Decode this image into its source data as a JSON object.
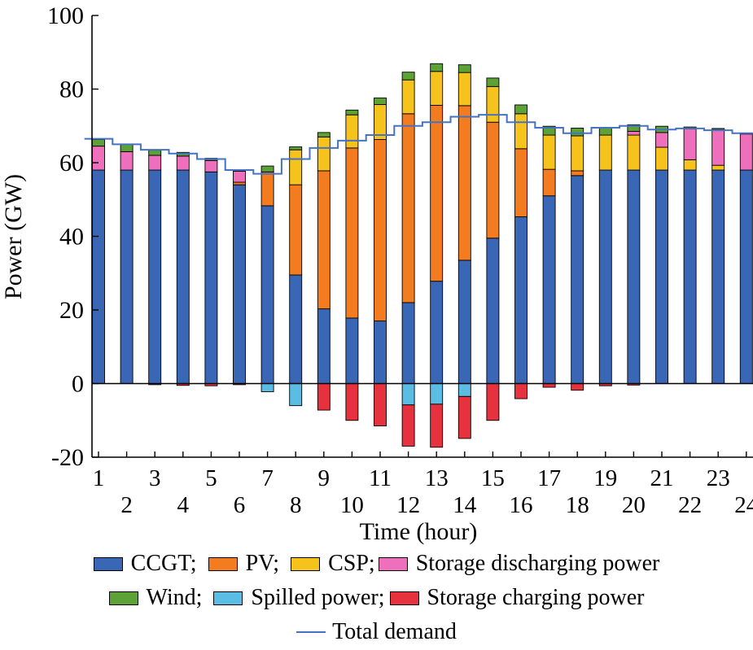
{
  "chart_data": {
    "type": "bar",
    "xlabel": "Time (hour)",
    "ylabel": "Power (GW)",
    "ylim": [
      -20,
      100
    ],
    "yticks": [
      -20,
      0,
      20,
      40,
      60,
      80,
      100
    ],
    "categories": [
      "1",
      "2",
      "3",
      "4",
      "5",
      "6",
      "7",
      "8",
      "9",
      "10",
      "11",
      "12",
      "13",
      "14",
      "15",
      "16",
      "17",
      "18",
      "19",
      "20",
      "21",
      "22",
      "23",
      "24"
    ],
    "series": [
      {
        "name": "CCGT",
        "color": "#3a67b5",
        "values": [
          58,
          58,
          58,
          58,
          57.5,
          54,
          48.3,
          29.5,
          20.3,
          17.8,
          17,
          22,
          27.8,
          33.5,
          39.5,
          45.3,
          51,
          56.5,
          58,
          58,
          58,
          58,
          58,
          58
        ]
      },
      {
        "name": "PV",
        "color": "#f47c20",
        "values": [
          0,
          0,
          0,
          0,
          0,
          0.7,
          9.2,
          24.5,
          37.5,
          46.2,
          49.3,
          51.3,
          47.8,
          42,
          31.5,
          18.5,
          7.2,
          1.3,
          0,
          0,
          0,
          0,
          0,
          0
        ]
      },
      {
        "name": "CSP",
        "color": "#f6c21c",
        "values": [
          0,
          0,
          0,
          0,
          0,
          0,
          0,
          9.5,
          9.2,
          9,
          9.5,
          9.2,
          9.2,
          9,
          9.7,
          9.5,
          9.3,
          9.5,
          9.5,
          9.5,
          6.2,
          2.8,
          1.3,
          0
        ]
      },
      {
        "name": "Storage discharging power",
        "color": "#ee70bd",
        "values": [
          6.5,
          5.0,
          4.0,
          3.8,
          3.1,
          3.0,
          0,
          0,
          0,
          0,
          0,
          0,
          0,
          0,
          0,
          0,
          0,
          0,
          0,
          1.0,
          4.0,
          8.4,
          9.7,
          9.8
        ]
      },
      {
        "name": "Wind",
        "color": "#5ca237",
        "values": [
          1.8,
          2.0,
          1.4,
          1.0,
          0.6,
          0.3,
          1.6,
          0.8,
          1.2,
          1.3,
          1.8,
          2.1,
          2.1,
          2.1,
          2.3,
          2.4,
          2.4,
          2.1,
          2.1,
          1.8,
          1.7,
          0.5,
          0.3,
          0.2
        ]
      },
      {
        "name": "Spilled power",
        "color": "#5bbce4",
        "values": [
          0,
          0,
          0,
          0,
          0,
          0,
          -2.2,
          -6,
          0,
          0,
          0,
          -5.8,
          -5.6,
          -3.5,
          0,
          0,
          0,
          0,
          0,
          0,
          0,
          0,
          0,
          0
        ]
      },
      {
        "name": "Storage charging power",
        "color": "#e6323f",
        "values": [
          0,
          0,
          -0.3,
          -0.5,
          -0.6,
          -0.3,
          0,
          0,
          -7.2,
          -10,
          -11.5,
          -11.2,
          -11.7,
          -11.4,
          -10,
          -4.1,
          -1,
          -1.8,
          -0.6,
          -0.4,
          0,
          0,
          0,
          0
        ]
      }
    ],
    "demand": {
      "name": "Total demand",
      "color": "#4472c4",
      "values": [
        66.5,
        65,
        63.5,
        62.5,
        61,
        58,
        57,
        61,
        64,
        66,
        67.5,
        70,
        71,
        72.5,
        73,
        71,
        69.5,
        68,
        69.5,
        70,
        69,
        69.3,
        68.8,
        68
      ]
    }
  },
  "legend": {
    "row1": [
      {
        "label": "CCGT;",
        "color": "#3a67b5"
      },
      {
        "label": "PV;",
        "color": "#f47c20"
      },
      {
        "label": "CSP;",
        "color": "#f6c21c"
      },
      {
        "label": "Storage discharging power",
        "color": "#ee70bd"
      }
    ],
    "row2": [
      {
        "label": "Wind;",
        "color": "#5ca237"
      },
      {
        "label": "Spilled power;",
        "color": "#5bbce4"
      },
      {
        "label": "Storage charging power",
        "color": "#e6323f"
      }
    ],
    "row3": {
      "label": "Total demand",
      "color": "#4472c4"
    }
  }
}
